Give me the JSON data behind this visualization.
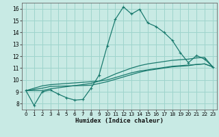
{
  "xlabel": "Humidex (Indice chaleur)",
  "xlim": [
    -0.5,
    23.5
  ],
  "ylim": [
    7.5,
    16.5
  ],
  "xticks": [
    0,
    1,
    2,
    3,
    4,
    5,
    6,
    7,
    8,
    9,
    10,
    11,
    12,
    13,
    14,
    15,
    16,
    17,
    18,
    19,
    20,
    21,
    22,
    23
  ],
  "yticks": [
    8,
    9,
    10,
    11,
    12,
    13,
    14,
    15,
    16
  ],
  "bg_color": "#c8eae4",
  "grid_color": "#9ed4cc",
  "line_color": "#1a7a6e",
  "curve1_x": [
    0,
    1,
    2,
    3,
    4,
    5,
    6,
    7,
    8,
    9,
    10,
    11,
    12,
    13,
    14,
    15,
    16,
    17,
    18,
    19,
    20,
    21,
    22,
    23
  ],
  "curve1_y": [
    9.1,
    7.85,
    9.0,
    9.15,
    8.8,
    8.5,
    8.3,
    8.35,
    9.3,
    10.4,
    12.85,
    15.1,
    16.15,
    15.55,
    15.95,
    14.8,
    14.5,
    14.0,
    13.35,
    12.3,
    11.45,
    12.05,
    11.75,
    11.1
  ],
  "curve2_x": [
    0,
    2,
    3,
    4,
    5,
    6,
    7,
    8,
    9,
    10,
    11,
    12,
    13,
    14,
    15,
    16,
    17,
    18,
    19,
    20,
    21,
    22,
    23
  ],
  "curve2_y": [
    9.1,
    9.5,
    9.6,
    9.65,
    9.7,
    9.75,
    9.8,
    9.85,
    9.9,
    10.0,
    10.2,
    10.4,
    10.6,
    10.75,
    10.85,
    10.95,
    11.05,
    11.15,
    11.2,
    11.25,
    11.3,
    11.35,
    11.1
  ],
  "curve3_x": [
    0,
    2,
    3,
    8,
    9,
    10,
    11,
    12,
    13,
    14,
    15,
    16,
    17,
    18,
    19,
    20,
    21,
    22,
    23
  ],
  "curve3_y": [
    9.1,
    9.3,
    9.45,
    9.55,
    9.7,
    9.85,
    10.05,
    10.25,
    10.45,
    10.65,
    10.8,
    10.9,
    11.0,
    11.1,
    11.15,
    11.2,
    11.3,
    11.35,
    11.1
  ],
  "curve4_x": [
    0,
    2,
    3,
    8,
    9,
    10,
    11,
    12,
    13,
    14,
    15,
    16,
    17,
    18,
    19,
    20,
    21,
    22,
    23
  ],
  "curve4_y": [
    9.1,
    9.1,
    9.25,
    9.7,
    9.9,
    10.2,
    10.5,
    10.75,
    11.0,
    11.2,
    11.35,
    11.45,
    11.55,
    11.65,
    11.7,
    11.75,
    11.85,
    11.9,
    11.1
  ]
}
